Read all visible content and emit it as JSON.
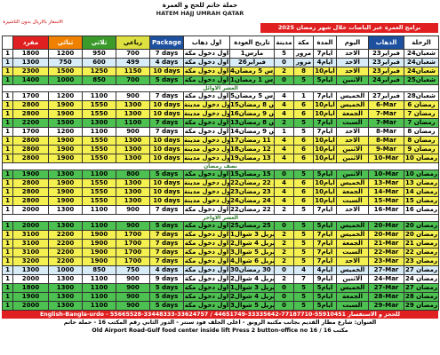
{
  "header": {
    "note": "الاسعار بالاريال بدون التاشيرة",
    "brand_ar": "حملة حاتم للحج و العمرة",
    "brand_en": "HATEM HAJJ UMRAH QATAR",
    "title": "برامج العمرة عبر الباصات خلال شهر رمضان 2025"
  },
  "table": {
    "columns": [
      "مفرد",
      "ثنائي",
      "ثلاثي",
      "رباعي",
      "Package",
      "اول ذهاب",
      "تاريخ العودة",
      "مدينة",
      "مكة",
      "المدة",
      "اليوم",
      "الذهاب",
      "الرحلة"
    ],
    "sections": [
      {
        "rows": [
          {
            "color": "#ffffff",
            "cells": [
              "1",
              "1800",
              "1200",
              "950",
              "700",
              "7 days",
              "اول دخول مكة",
              "1مارس",
              "5",
              "مرور",
              "7ايام",
              "الاحد",
              "23فبراير",
              "24شعبان"
            ]
          },
          {
            "color": "#d8ecf8",
            "cells": [
              "1",
              "1300",
              "750",
              "600",
              "499",
              "4 days",
              "اول دخول مكة",
              "26فبراير",
              "0",
              "مرور",
              "4ايام",
              "الاحد",
              "23فبراير",
              "24شعبان"
            ]
          },
          {
            "color": "#f4f050",
            "cells": [
              "1",
              "2300",
              "1500",
              "1250",
              "1150",
              "10 days",
              "اول دخول مكة",
              "4مارس 5 رمضان",
              "2",
              "8",
              "10ايام",
              "الاحد",
              "23فبراير",
              "24شعبان"
            ]
          },
          {
            "color": "#4cc050",
            "cells": [
              "1",
              "1400",
              "1000",
              "850",
              "700",
              "5 days",
              "اول دخول مكة",
              "1مارس 1 رمضان",
              "0",
              "5",
              "5ايام",
              "الاثنين",
              "24فبراير",
              "25شعبان"
            ]
          }
        ]
      },
      {
        "label": "العشر الاوائل",
        "rows": [
          {
            "color": "#ffffff",
            "cells": [
              "1",
              "1700",
              "1200",
              "1100",
              "900",
              "7 days",
              "اول دخول مكة",
              "5مارس 5 رمضان",
              "4",
              "1",
              "7ايام",
              "الخميس",
              "27فبراير",
              "28شعبان"
            ]
          },
          {
            "color": "#f4f050",
            "cells": [
              "1",
              "2800",
              "1900",
              "1550",
              "1300",
              "10 days",
              "اول دخول مدينة",
              "15مارس 8 رمضان",
              "4",
              "6",
              "10ايام",
              "الخميس",
              "6-Mar",
              "6 رمضان"
            ]
          },
          {
            "color": "#f4f050",
            "cells": [
              "1",
              "2800",
              "1900",
              "1550",
              "1300",
              "10 days",
              "اول دخول مدينة",
              "16مارس 9 رمضان",
              "4",
              "6",
              "10ايام",
              "الجمعة",
              "7-Mar",
              "7 رمضان"
            ]
          },
          {
            "color": "#4cc050",
            "cells": [
              "1",
              "2200",
              "1500",
              "1300",
              "1100",
              "7 days",
              "اول دخول مكة",
              "13مارس 8 رمضان",
              "2",
              "5",
              "7ايام",
              "السبت",
              "7-Mar",
              "7 رمضان"
            ]
          },
          {
            "color": "#ffffff",
            "cells": [
              "1",
              "1700",
              "1200",
              "1100",
              "900",
              "7 days",
              "اول دخول مكة",
              "14مارس 9 رمضان",
              "1",
              "5",
              "7ايام",
              "الاحد",
              "8-Mar",
              "8 رمضان"
            ]
          },
          {
            "color": "#f4f050",
            "cells": [
              "1",
              "2800",
              "1900",
              "1550",
              "1300",
              "10 days",
              "اول دخول مدينة",
              "17مارس 11 رمضان",
              "4",
              "6",
              "10ايام",
              "الاحد",
              "8-Mar",
              "8 رمضان"
            ]
          },
          {
            "color": "#f4f050",
            "cells": [
              "1",
              "2800",
              "1900",
              "1550",
              "1300",
              "10 days",
              "اول دخول مدينة",
              "18مارس 12 رمضان",
              "4",
              "6",
              "10ايام",
              "الاثنين",
              "9-Mar",
              "9 رمضان"
            ]
          },
          {
            "color": "#f4f050",
            "cells": [
              "1",
              "2800",
              "1900",
              "1550",
              "1300",
              "10 days",
              "اول دخول مدينة",
              "19مارس 13 رمضان",
              "4",
              "6",
              "10ايام",
              "الاثنين",
              "10-Mar",
              "10 رمضان"
            ]
          }
        ]
      },
      {
        "label": "نصف رمضان",
        "rows": [
          {
            "color": "#4cc050",
            "cells": [
              "1",
              "1900",
              "1300",
              "1100",
              "800",
              "5 days",
              "اول دخول مكة",
              "15مارس 15 رمضان",
              "0",
              "5",
              "5ايام",
              "الاثنين",
              "10-Mar",
              "10 رمضان"
            ]
          },
          {
            "color": "#f4f050",
            "cells": [
              "1",
              "2800",
              "1900",
              "1550",
              "1300",
              "10 days",
              "اول دخول مدينة",
              "22مارس 22 رمضان",
              "4",
              "6",
              "10ايام",
              "الخميس",
              "13-Mar",
              "13 رمضان"
            ]
          },
          {
            "color": "#f4f050",
            "cells": [
              "1",
              "2800",
              "1900",
              "1550",
              "1300",
              "10 days",
              "اول دخول مدينة",
              "23مارس 23 رمضان",
              "4",
              "6",
              "10ايام",
              "الجمعة",
              "14-Mar",
              "14 رمضان"
            ]
          },
          {
            "color": "#f4f050",
            "cells": [
              "1",
              "2800",
              "1900",
              "1550",
              "1300",
              "10 days",
              "اول دخول مدينة",
              "24مارس 24 رمضان",
              "4",
              "6",
              "10ايام",
              "السبت",
              "15-Mar",
              "15 رمضان"
            ]
          },
          {
            "color": "#ffffff",
            "cells": [
              "1",
              "2000",
              "1300",
              "1100",
              "900",
              "7 days",
              "اول دخول مكة",
              "22مارس 22 رمضان",
              "2",
              "5",
              "7ايام",
              "الاحد",
              "16-Mar",
              "16 رمضان"
            ]
          }
        ]
      },
      {
        "label": "العشر الاواخر",
        "rows": [
          {
            "color": "#4cc050",
            "cells": [
              "1",
              "2000",
              "1300",
              "1100",
              "900",
              "5 days",
              "اول دخول مكة",
              "25مارس 25 رمضان",
              "0",
              "5",
              "5ايام",
              "الخميس",
              "20-Mar",
              "20 رمضان"
            ]
          },
          {
            "color": "#f4f050",
            "cells": [
              "1",
              "3100",
              "2200",
              "1900",
              "1700",
              "7 days",
              "اول دخول مكة",
              "1ابريل 3 شوال",
              "2",
              "5",
              "7ايام",
              "الخميس",
              "20-Mar",
              "20 رمضان"
            ]
          },
          {
            "color": "#f4f050",
            "cells": [
              "1",
              "3100",
              "2200",
              "1900",
              "1700",
              "7 days",
              "اول دخول مكة",
              "2ابريل 4 شوال",
              "2",
              "5",
              "7ايام",
              "الجمعة",
              "21-Mar",
              "21 رمضان"
            ]
          },
          {
            "color": "#f4f050",
            "cells": [
              "1",
              "3100",
              "2200",
              "1900",
              "1700",
              "7 days",
              "اول دخول مكة",
              "3ابريل 5 شوال",
              "2",
              "5",
              "7ايام",
              "السبت",
              "22-Mar",
              "22 رمضان"
            ]
          },
          {
            "color": "#f4f050",
            "cells": [
              "1",
              "3200",
              "2200",
              "1900",
              "1700",
              "7 days",
              "اول دخول مكة",
              "4ابريل 6 شوال",
              "2",
              "5",
              "7ايام",
              "الاحد",
              "23-Mar",
              "23 رمضان"
            ]
          },
          {
            "color": "#d8ecf8",
            "cells": [
              "1",
              "1300",
              "1000",
              "850",
              "750",
              "4 days",
              "اول دخول مكة",
              "30مارس 30 رمضان",
              "0",
              "4",
              "4ايام",
              "الخميس",
              "27-Mar",
              "27 رمضان"
            ]
          },
          {
            "color": "#ffffff",
            "cells": [
              "1",
              "2000",
              "1300",
              "1100",
              "900",
              "9 days",
              "اول دخول مكة",
              "2ابريل 4 شوال",
              "2",
              "7",
              "9ايام",
              "الاثنين",
              "24-Mar",
              "24 رمضان"
            ]
          },
          {
            "color": "#4cc050",
            "cells": [
              "1",
              "1800",
              "1300",
              "1100",
              "900",
              "5 days",
              "اول دخول مكة",
              "1ابريل 3 شوال",
              "0",
              "5",
              "5ايام",
              "الخميس",
              "27-Mar",
              "27 رمضان"
            ]
          },
          {
            "color": "#4cc050",
            "cells": [
              "1",
              "1900",
              "1300",
              "1100",
              "900",
              "5 days",
              "اول دخول مكة",
              "2ابريل 4 شوال",
              "0",
              "5",
              "5ايام",
              "الجمعة",
              "28-Mar",
              "28 رمضان"
            ]
          },
          {
            "color": "#4cc050",
            "cells": [
              "1",
              "2000",
              "1300",
              "1100",
              "900",
              "5 days",
              "اول دخول مكة",
              "3ابريل 5 شوال",
              "0",
              "5",
              "5ايام",
              "السبت",
              "29-Mar",
              "29 رمضان"
            ]
          }
        ]
      }
    ]
  },
  "footer": {
    "phones": "English-Bangla-urdo - 55665528-33448333-33624757 / 44651749-33335642-77187710-55910451 للحجز و الاستفسار",
    "address_ar": "العنوان: شارع مطار القديم بجانب مكتبة الرونق - اعلى الجلف فود سنتر - الدور الثاني رقم المكتب 16 - حملة حاتم",
    "address_en": "Old Airport Road-Gulf food center inside lift Press 2 button-office no 16 / مكتب 16"
  }
}
